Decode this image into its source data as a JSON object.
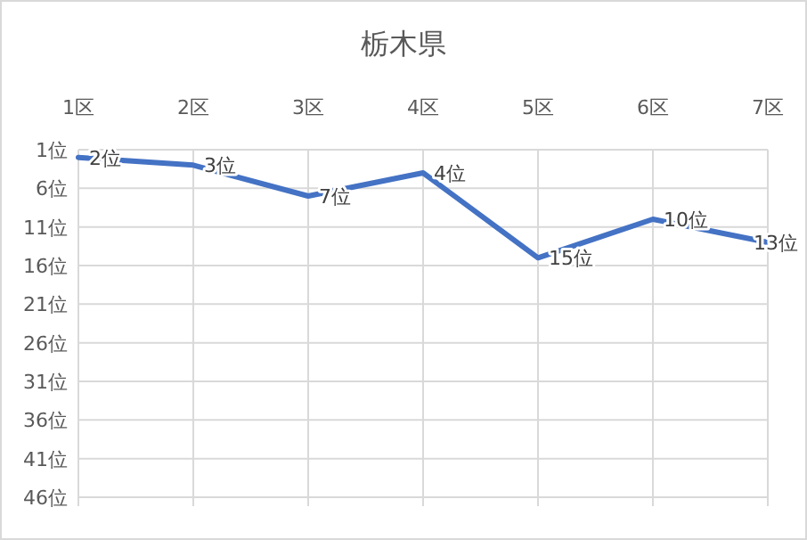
{
  "chart_data": {
    "type": "line",
    "title": "栃木県",
    "categories": [
      "1区",
      "2区",
      "3区",
      "4区",
      "5区",
      "6区",
      "7区"
    ],
    "series": [
      {
        "color": "#4472c4",
        "values": [
          2,
          3,
          7,
          4,
          15,
          10,
          13
        ],
        "value_labels": [
          "2位",
          "3位",
          "7位",
          "4位",
          "15位",
          "10位",
          "13位"
        ]
      }
    ],
    "ylim": [
      46,
      1
    ],
    "yticks": [
      {
        "value": 1,
        "label": "1位"
      },
      {
        "value": 6,
        "label": "6位"
      },
      {
        "value": 11,
        "label": "11位"
      },
      {
        "value": 16,
        "label": "16位"
      },
      {
        "value": 21,
        "label": "21位"
      },
      {
        "value": 26,
        "label": "26位"
      },
      {
        "value": 31,
        "label": "31位"
      },
      {
        "value": 36,
        "label": "36位"
      },
      {
        "value": 41,
        "label": "41位"
      },
      {
        "value": 46,
        "label": "46位"
      }
    ],
    "grid": true,
    "marker": "none",
    "line_style": "solid"
  }
}
